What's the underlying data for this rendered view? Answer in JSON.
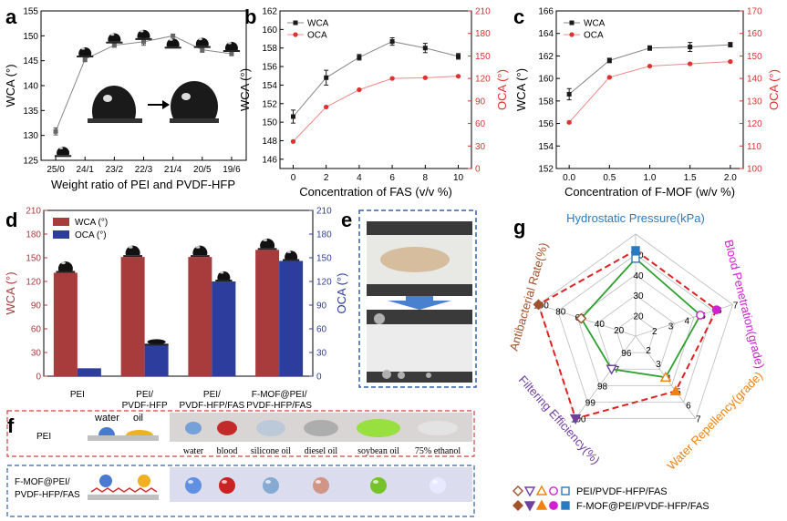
{
  "panels": {
    "a": {
      "letter": "a"
    },
    "b": {
      "letter": "b"
    },
    "c": {
      "letter": "c"
    },
    "d": {
      "letter": "d"
    },
    "e": {
      "letter": "e"
    },
    "f": {
      "letter": "f"
    },
    "g": {
      "letter": "g"
    }
  },
  "panel_f": {
    "water_label": "water",
    "oil_label": "oil",
    "row1_label": "PEI",
    "row2_label_1": "F-MOF@PEI/",
    "row2_label_2": "PVDF-HFP/FAS",
    "liquids": [
      "water",
      "blood",
      "silicone oil",
      "diesel oil",
      "soybean oil",
      "75% ethanol"
    ]
  },
  "colors": {
    "black_series": "#1a1a1a",
    "red_series": "#e03030",
    "wca_bar": "#a83c3c",
    "oca_bar": "#2d3d9e",
    "panel_e_border": "#3060b0",
    "panel_f_top_border": "#d04040",
    "panel_f_bottom_border": "#3060b0",
    "radar_series1": "#2ea02e",
    "radar_series2": "#e02020",
    "hydro_color": "#2a7ac0",
    "blood_color": "#d020d0",
    "water_rep_color": "#f08010",
    "filter_color": "#7040a0",
    "anti_color": "#a0522d"
  },
  "chart_data": [
    {
      "id": "a",
      "type": "line",
      "categories": [
        "25/0",
        "24/1",
        "23/2",
        "22/3",
        "21/4",
        "20/5",
        "19/6"
      ],
      "series": [
        {
          "values": [
            130.8,
            145.3,
            148.1,
            148.8,
            150.0,
            147.2,
            146.4
          ],
          "errors": [
            0.7,
            0.5,
            0.4,
            0.7,
            0.3,
            0.5,
            0.4
          ]
        }
      ],
      "xlabel": "Weight ratio of PEI and PVDF-HFP",
      "ylabel": "WCA (°)",
      "ylim": [
        125,
        155
      ],
      "yticks": [
        125,
        130,
        135,
        140,
        145,
        150,
        155
      ]
    },
    {
      "id": "b",
      "type": "line",
      "x": [
        0,
        2,
        4,
        6,
        8,
        10
      ],
      "series": [
        {
          "name": "WCA",
          "axis": "left",
          "values": [
            150.6,
            154.8,
            157.0,
            158.7,
            158.0,
            157.1
          ],
          "errors": [
            0.7,
            0.8,
            0.3,
            0.4,
            0.5,
            0.3
          ]
        },
        {
          "name": "OCA",
          "axis": "right",
          "values": [
            36,
            82,
            105,
            120,
            121,
            123
          ],
          "errors": [
            1,
            1,
            1,
            1,
            1,
            1
          ]
        }
      ],
      "xlabel": "Concentration of FAS (v/v %)",
      "ylabel": "WCA (°)",
      "y2label": "OCA (°)",
      "ylim": [
        145,
        162
      ],
      "yticks": [
        146,
        148,
        150,
        152,
        154,
        156,
        158,
        160,
        162
      ],
      "y2lim": [
        0,
        210
      ],
      "y2ticks": [
        0,
        30,
        60,
        90,
        120,
        150,
        180,
        210
      ],
      "xticks": [
        0,
        2,
        4,
        6,
        8,
        10
      ],
      "legend": "top-left"
    },
    {
      "id": "c",
      "type": "line",
      "x": [
        0.0,
        0.5,
        1.0,
        1.5,
        2.0
      ],
      "series": [
        {
          "name": "WCA",
          "axis": "left",
          "values": [
            158.6,
            161.6,
            162.7,
            162.8,
            163.0
          ],
          "errors": [
            0.5,
            0.2,
            0.2,
            0.4,
            0.2
          ]
        },
        {
          "name": "OCA",
          "axis": "right",
          "values": [
            120.5,
            140.5,
            145.5,
            146.5,
            147.5
          ],
          "errors": [
            0.5,
            0.3,
            0.3,
            0.3,
            0.3
          ]
        }
      ],
      "xlabel": "Concentration of F-MOF (w/v %)",
      "ylabel": "WCA (°)",
      "y2label": "OCA (°)",
      "ylim": [
        152,
        166
      ],
      "yticks": [
        152,
        154,
        156,
        158,
        160,
        162,
        164,
        166
      ],
      "y2lim": [
        100,
        170
      ],
      "y2ticks": [
        100,
        110,
        120,
        130,
        140,
        150,
        160,
        170
      ],
      "xticks": [
        "0.0",
        "0.5",
        "1.0",
        "1.5",
        "2.0"
      ],
      "legend": "top-left"
    },
    {
      "id": "d",
      "type": "bar",
      "categories": [
        [
          "PEI"
        ],
        [
          "PEI/",
          "PVDF-HFP"
        ],
        [
          "PEI/",
          "PVDF-HFP/FAS"
        ],
        [
          "F-MOF@PEI/",
          "PVDF-HFP/FAS"
        ]
      ],
      "series": [
        {
          "name": "WCA (°)",
          "axis": "left",
          "values": [
            131,
            151,
            151,
            160
          ]
        },
        {
          "name": "OCA (°)",
          "axis": "right",
          "values": [
            10,
            40,
            120,
            146
          ]
        }
      ],
      "ylabel": "WCA (°)",
      "y2label": "OCA (°)",
      "ylim": [
        0,
        210
      ],
      "yticks": [
        0,
        30,
        60,
        90,
        120,
        150,
        180,
        210
      ],
      "y2lim": [
        0,
        210
      ],
      "y2ticks": [
        0,
        30,
        60,
        90,
        120,
        150,
        180,
        210
      ],
      "legend": "top-left"
    },
    {
      "id": "g",
      "type": "radar",
      "axes": [
        {
          "name": "Hydrostatic Pressure(kPa)",
          "ticks": [
            "20",
            "30",
            "40",
            "50"
          ]
        },
        {
          "name": "Blood Penetration(grade)",
          "ticks": [
            "2",
            "3",
            "4",
            "5",
            "6",
            "7"
          ]
        },
        {
          "name": "Water Repellency(grade)",
          "ticks": [
            "2",
            "3",
            "4",
            "5",
            "6",
            "7"
          ]
        },
        {
          "name": "Filtering Efficiency(%)",
          "ticks": [
            "96",
            "97",
            "98",
            "99",
            "100"
          ]
        },
        {
          "name": "Antibacterial Rate(%)",
          "ticks": [
            "20",
            "40",
            "60",
            "80",
            "100"
          ]
        }
      ],
      "series": [
        {
          "name": "PEI/PVDF-HFP/FAS",
          "values": [
            48,
            5,
            4,
            97,
            56
          ]
        },
        {
          "name": "F-MOF@PEI/PVDF-HFP/FAS",
          "values": [
            52,
            6,
            5,
            100,
            100
          ]
        }
      ],
      "legend": "bottom"
    }
  ]
}
